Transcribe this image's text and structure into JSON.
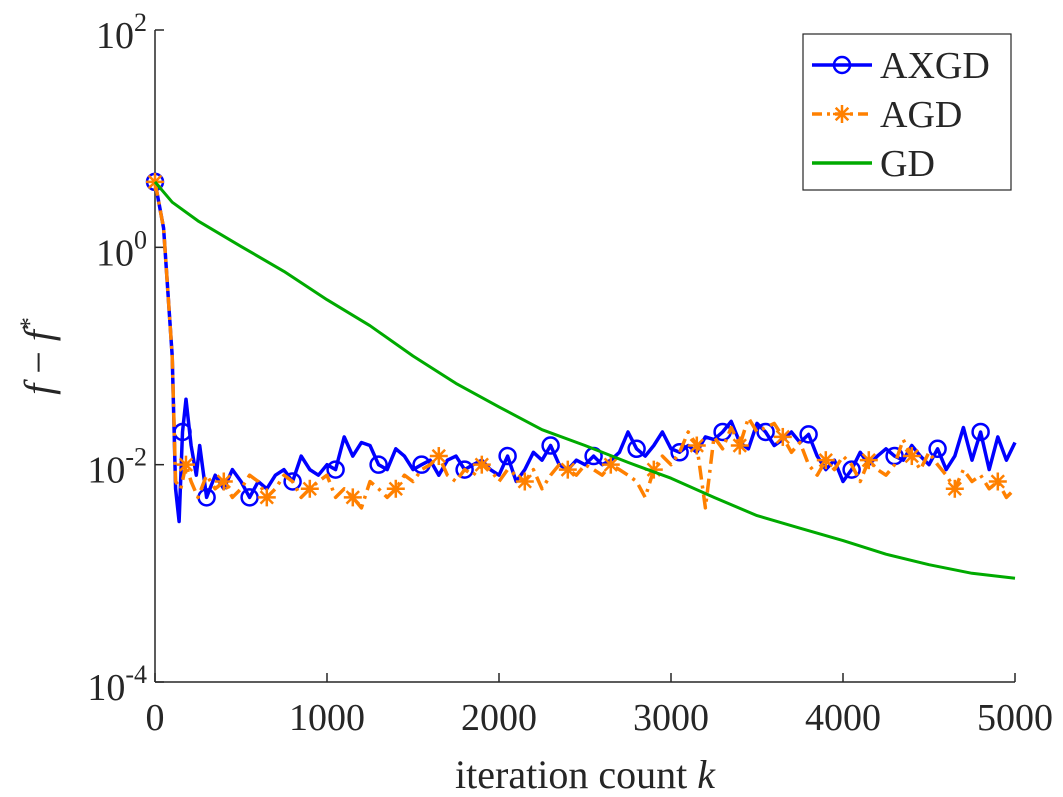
{
  "chart_data": {
    "type": "line",
    "yscale": "log",
    "xlabel": "iteration count",
    "xlabel_var": "k",
    "ylabel_parts": [
      "f",
      " − ",
      "f",
      "*"
    ],
    "xlim": [
      0,
      5000
    ],
    "ylim": [
      0.0001,
      100
    ],
    "xticks": [
      {
        "value": 0,
        "label": "0"
      },
      {
        "value": 1000,
        "label": "1000"
      },
      {
        "value": 2000,
        "label": "2000"
      },
      {
        "value": 3000,
        "label": "3000"
      },
      {
        "value": 4000,
        "label": "4000"
      },
      {
        "value": 5000,
        "label": "5000"
      }
    ],
    "yticks": [
      {
        "value": 0.0001,
        "base": "10",
        "exp": "-4"
      },
      {
        "value": 0.01,
        "base": "10",
        "exp": "-2"
      },
      {
        "value": 1,
        "base": "10",
        "exp": "0"
      },
      {
        "value": 100,
        "base": "10",
        "exp": "2"
      }
    ],
    "legend_position": "top-right",
    "series": [
      {
        "name": "AXGD",
        "color": "#0000FF",
        "marker": "circle",
        "linestyle": "solid",
        "points": [
          [
            0,
            4
          ],
          [
            50,
            1.5
          ],
          [
            100,
            0.1
          ],
          [
            120,
            0.006
          ],
          [
            140,
            0.003
          ],
          [
            160,
            0.02
          ],
          [
            180,
            0.04
          ],
          [
            210,
            0.015
          ],
          [
            240,
            0.008
          ],
          [
            260,
            0.015
          ],
          [
            300,
            0.005
          ],
          [
            350,
            0.008
          ],
          [
            400,
            0.006
          ],
          [
            450,
            0.009
          ],
          [
            500,
            0.007
          ],
          [
            550,
            0.005
          ],
          [
            600,
            0.007
          ],
          [
            650,
            0.006
          ],
          [
            700,
            0.008
          ],
          [
            750,
            0.009
          ],
          [
            800,
            0.007
          ],
          [
            850,
            0.012
          ],
          [
            900,
            0.009
          ],
          [
            950,
            0.008
          ],
          [
            1000,
            0.01
          ],
          [
            1050,
            0.009
          ],
          [
            1100,
            0.018
          ],
          [
            1150,
            0.012
          ],
          [
            1200,
            0.016
          ],
          [
            1250,
            0.015
          ],
          [
            1300,
            0.01
          ],
          [
            1350,
            0.009
          ],
          [
            1400,
            0.014
          ],
          [
            1450,
            0.012
          ],
          [
            1500,
            0.009
          ],
          [
            1550,
            0.01
          ],
          [
            1600,
            0.011
          ],
          [
            1650,
            0.008
          ],
          [
            1700,
            0.011
          ],
          [
            1750,
            0.012
          ],
          [
            1800,
            0.009
          ],
          [
            1850,
            0.01
          ],
          [
            1900,
            0.011
          ],
          [
            1950,
            0.009
          ],
          [
            2000,
            0.008
          ],
          [
            2050,
            0.012
          ],
          [
            2100,
            0.007
          ],
          [
            2150,
            0.009
          ],
          [
            2200,
            0.013
          ],
          [
            2250,
            0.011
          ],
          [
            2300,
            0.015
          ],
          [
            2350,
            0.01
          ],
          [
            2400,
            0.009
          ],
          [
            2450,
            0.011
          ],
          [
            2500,
            0.01
          ],
          [
            2550,
            0.012
          ],
          [
            2600,
            0.01
          ],
          [
            2650,
            0.011
          ],
          [
            2700,
            0.013
          ],
          [
            2750,
            0.02
          ],
          [
            2800,
            0.014
          ],
          [
            2850,
            0.012
          ],
          [
            2900,
            0.015
          ],
          [
            2950,
            0.02
          ],
          [
            3000,
            0.014
          ],
          [
            3050,
            0.013
          ],
          [
            3100,
            0.015
          ],
          [
            3150,
            0.013
          ],
          [
            3200,
            0.018
          ],
          [
            3250,
            0.017
          ],
          [
            3300,
            0.02
          ],
          [
            3350,
            0.025
          ],
          [
            3400,
            0.016
          ],
          [
            3450,
            0.014
          ],
          [
            3500,
            0.024
          ],
          [
            3550,
            0.02
          ],
          [
            3600,
            0.015
          ],
          [
            3650,
            0.017
          ],
          [
            3700,
            0.02
          ],
          [
            3750,
            0.016
          ],
          [
            3800,
            0.019
          ],
          [
            3850,
            0.012
          ],
          [
            3900,
            0.009
          ],
          [
            3950,
            0.011
          ],
          [
            4000,
            0.007
          ],
          [
            4050,
            0.009
          ],
          [
            4100,
            0.013
          ],
          [
            4150,
            0.01
          ],
          [
            4200,
            0.012
          ],
          [
            4250,
            0.014
          ],
          [
            4300,
            0.012
          ],
          [
            4350,
            0.011
          ],
          [
            4400,
            0.015
          ],
          [
            4450,
            0.012
          ],
          [
            4500,
            0.01
          ],
          [
            4550,
            0.014
          ],
          [
            4600,
            0.009
          ],
          [
            4650,
            0.012
          ],
          [
            4700,
            0.022
          ],
          [
            4750,
            0.011
          ],
          [
            4800,
            0.02
          ],
          [
            4850,
            0.009
          ],
          [
            4900,
            0.018
          ],
          [
            4950,
            0.011
          ],
          [
            5000,
            0.016
          ]
        ]
      },
      {
        "name": "AGD",
        "color": "#FF8000",
        "marker": "asterisk",
        "linestyle": "dash-dot",
        "points": [
          [
            0,
            4
          ],
          [
            50,
            1.5
          ],
          [
            100,
            0.1
          ],
          [
            120,
            0.007
          ],
          [
            150,
            0.006
          ],
          [
            180,
            0.01
          ],
          [
            210,
            0.007
          ],
          [
            250,
            0.005
          ],
          [
            300,
            0.008
          ],
          [
            350,
            0.006
          ],
          [
            400,
            0.007
          ],
          [
            450,
            0.005
          ],
          [
            500,
            0.006
          ],
          [
            550,
            0.008
          ],
          [
            600,
            0.007
          ],
          [
            650,
            0.005
          ],
          [
            700,
            0.006
          ],
          [
            750,
            0.008
          ],
          [
            800,
            0.007
          ],
          [
            850,
            0.005
          ],
          [
            900,
            0.006
          ],
          [
            950,
            0.007
          ],
          [
            1000,
            0.008
          ],
          [
            1050,
            0.005
          ],
          [
            1100,
            0.006
          ],
          [
            1150,
            0.005
          ],
          [
            1200,
            0.004
          ],
          [
            1250,
            0.007
          ],
          [
            1300,
            0.006
          ],
          [
            1350,
            0.005
          ],
          [
            1400,
            0.006
          ],
          [
            1450,
            0.008
          ],
          [
            1500,
            0.007
          ],
          [
            1550,
            0.009
          ],
          [
            1600,
            0.01
          ],
          [
            1650,
            0.012
          ],
          [
            1700,
            0.008
          ],
          [
            1750,
            0.007
          ],
          [
            1800,
            0.009
          ],
          [
            1850,
            0.008
          ],
          [
            1900,
            0.01
          ],
          [
            1950,
            0.009
          ],
          [
            2000,
            0.007
          ],
          [
            2050,
            0.009
          ],
          [
            2100,
            0.008
          ],
          [
            2150,
            0.007
          ],
          [
            2200,
            0.009
          ],
          [
            2250,
            0.006
          ],
          [
            2300,
            0.008
          ],
          [
            2350,
            0.01
          ],
          [
            2400,
            0.009
          ],
          [
            2450,
            0.008
          ],
          [
            2500,
            0.01
          ],
          [
            2550,
            0.009
          ],
          [
            2600,
            0.008
          ],
          [
            2650,
            0.01
          ],
          [
            2700,
            0.009
          ],
          [
            2750,
            0.008
          ],
          [
            2800,
            0.007
          ],
          [
            2850,
            0.005
          ],
          [
            2900,
            0.009
          ],
          [
            2950,
            0.012
          ],
          [
            3000,
            0.01
          ],
          [
            3050,
            0.013
          ],
          [
            3100,
            0.02
          ],
          [
            3150,
            0.015
          ],
          [
            3200,
            0.004
          ],
          [
            3250,
            0.018
          ],
          [
            3300,
            0.014
          ],
          [
            3350,
            0.022
          ],
          [
            3400,
            0.015
          ],
          [
            3450,
            0.027
          ],
          [
            3500,
            0.02
          ],
          [
            3550,
            0.022
          ],
          [
            3600,
            0.024
          ],
          [
            3650,
            0.018
          ],
          [
            3700,
            0.013
          ],
          [
            3750,
            0.016
          ],
          [
            3800,
            0.01
          ],
          [
            3850,
            0.008
          ],
          [
            3900,
            0.011
          ],
          [
            3950,
            0.009
          ],
          [
            4000,
            0.012
          ],
          [
            4050,
            0.01
          ],
          [
            4100,
            0.007
          ],
          [
            4150,
            0.011
          ],
          [
            4200,
            0.009
          ],
          [
            4250,
            0.008
          ],
          [
            4300,
            0.01
          ],
          [
            4350,
            0.017
          ],
          [
            4400,
            0.012
          ],
          [
            4450,
            0.009
          ],
          [
            4500,
            0.013
          ],
          [
            4550,
            0.01
          ],
          [
            4600,
            0.008
          ],
          [
            4650,
            0.006
          ],
          [
            4700,
            0.009
          ],
          [
            4750,
            0.007
          ],
          [
            4800,
            0.008
          ],
          [
            4850,
            0.006
          ],
          [
            4900,
            0.007
          ],
          [
            4950,
            0.005
          ],
          [
            5000,
            0.006
          ]
        ]
      },
      {
        "name": "GD",
        "color": "#00AA00",
        "marker": "none",
        "linestyle": "solid",
        "points": [
          [
            0,
            4
          ],
          [
            100,
            2.6
          ],
          [
            250,
            1.75
          ],
          [
            500,
            1.02
          ],
          [
            750,
            0.6
          ],
          [
            1000,
            0.33
          ],
          [
            1250,
            0.19
          ],
          [
            1500,
            0.1
          ],
          [
            1750,
            0.056
          ],
          [
            2000,
            0.034
          ],
          [
            2250,
            0.021
          ],
          [
            2500,
            0.015
          ],
          [
            2750,
            0.0105
          ],
          [
            3000,
            0.0075
          ],
          [
            3250,
            0.005
          ],
          [
            3500,
            0.0034
          ],
          [
            3750,
            0.0026
          ],
          [
            4000,
            0.002
          ],
          [
            4250,
            0.0015
          ],
          [
            4500,
            0.0012
          ],
          [
            4750,
            0.001
          ],
          [
            5000,
            0.0009
          ]
        ]
      }
    ]
  }
}
